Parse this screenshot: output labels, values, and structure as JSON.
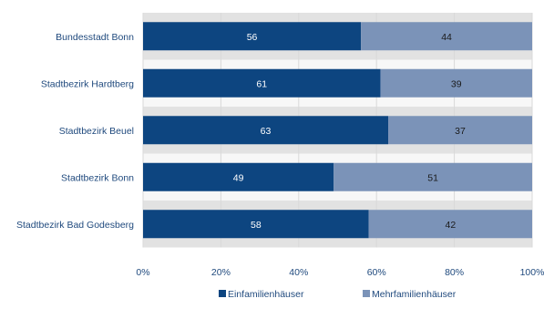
{
  "chart_data": {
    "type": "bar",
    "orientation": "horizontal",
    "stacked": "percent",
    "categories": [
      "Bundesstadt Bonn",
      "Stadtbezirk Hardtberg",
      "Stadtbezirk Beuel",
      "Stadtbezirk Bonn",
      "Stadtbezirk Bad Godesberg"
    ],
    "series": [
      {
        "name": "Einfamilienhäuser",
        "values": [
          56,
          61,
          63,
          49,
          58
        ],
        "color": "#0d4580",
        "label_color": "#ffffff"
      },
      {
        "name": "Mehrfamilienhäuser",
        "values": [
          44,
          39,
          37,
          51,
          42
        ],
        "color": "#7b93b8",
        "label_color": "#1a1a1a"
      }
    ],
    "x_ticks": [
      "0%",
      "20%",
      "40%",
      "60%",
      "80%",
      "100%"
    ],
    "xlim": [
      0,
      100
    ],
    "grid": true,
    "legend_position": "bottom",
    "band_colors": [
      "#e2e2e2",
      "#f7f7f7"
    ],
    "gridline_color": "#d9d9d9"
  }
}
